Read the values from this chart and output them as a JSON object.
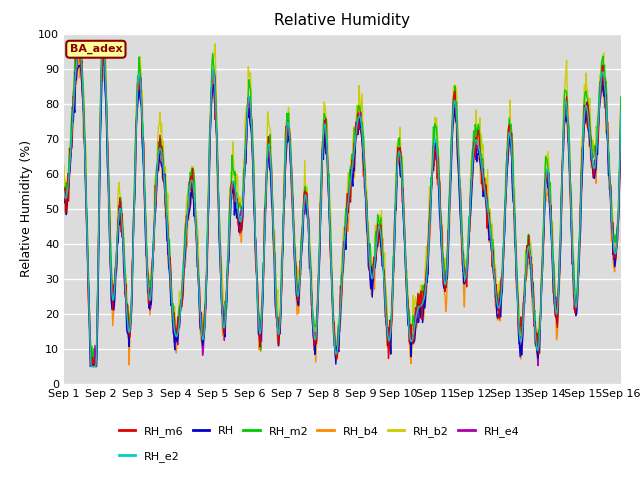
{
  "title": "Relative Humidity",
  "ylabel": "Relative Humidity (%)",
  "ylim": [
    0,
    100
  ],
  "yticks": [
    0,
    10,
    20,
    30,
    40,
    50,
    60,
    70,
    80,
    90,
    100
  ],
  "bg_color": "#dcdcdc",
  "fig_bg": "#ffffff",
  "grid_color": "#ffffff",
  "annotation_text": "BA_adex",
  "annotation_bg": "#ffff99",
  "annotation_border": "#8b0000",
  "annotation_text_color": "#8b0000",
  "series_colors": {
    "RH_m6": "#dd0000",
    "RH": "#0000cc",
    "RH_m2": "#00cc00",
    "RH_b4": "#ff8800",
    "RH_b2": "#cccc00",
    "RH_e4": "#aa00aa",
    "RH_e2": "#00cccc"
  },
  "series_order": [
    "RH_b2",
    "RH_b4",
    "RH_m2",
    "RH_e4",
    "RH",
    "RH_m6",
    "RH_e2"
  ],
  "legend_order": [
    "RH_m6",
    "RH",
    "RH_m2",
    "RH_b4",
    "RH_b2",
    "RH_e4",
    "RH_e2"
  ],
  "n_points": 720,
  "days": 15,
  "key_points_x": [
    0,
    0.2,
    0.5,
    0.9,
    1.0,
    1.3,
    1.5,
    1.8,
    2.0,
    2.3,
    2.5,
    2.8,
    3.0,
    3.3,
    3.5,
    3.8,
    4.0,
    4.3,
    4.5,
    4.8,
    5.0,
    5.3,
    5.5,
    5.8,
    6.0,
    6.3,
    6.5,
    6.8,
    7.0,
    7.3,
    7.5,
    7.8,
    8.0,
    8.3,
    8.5,
    8.8,
    9.0,
    9.3,
    9.5,
    9.8,
    10.0,
    10.3,
    10.5,
    10.8,
    11.0,
    11.3,
    11.5,
    11.8,
    12.0,
    12.3,
    12.5,
    12.8,
    13.0,
    13.3,
    13.5,
    13.8,
    14.0,
    14.3,
    14.5,
    14.8,
    15.0
  ],
  "key_points_y": [
    55,
    70,
    86,
    20,
    85,
    25,
    50,
    19,
    87,
    24,
    60,
    42,
    14,
    45,
    55,
    19,
    89,
    16,
    54,
    49,
    82,
    15,
    68,
    15,
    73,
    25,
    54,
    15,
    73,
    10,
    32,
    65,
    75,
    30,
    45,
    15,
    65,
    15,
    20,
    35,
    70,
    30,
    80,
    30,
    62,
    58,
    42,
    29,
    72,
    12,
    39,
    12,
    61,
    22,
    80,
    22,
    74,
    62,
    89,
    40,
    78
  ]
}
